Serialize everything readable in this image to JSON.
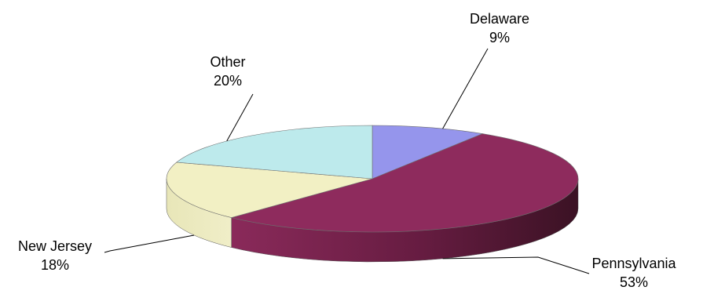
{
  "chart_data": {
    "type": "pie",
    "style": "3d",
    "slices": [
      {
        "label": "Delaware",
        "value": 9,
        "value_text": "9%",
        "color": "#9595EC",
        "side_color": "#6F6FC2"
      },
      {
        "label": "Pennsylvania",
        "value": 53,
        "value_text": "53%",
        "color": "#8E2B5D",
        "side_color": "#6A1E45"
      },
      {
        "label": "New Jersey",
        "value": 18,
        "value_text": "18%",
        "color": "#F2F0C4",
        "side_color": "#E6E4B2"
      },
      {
        "label": "Other",
        "value": 20,
        "value_text": "20%",
        "color": "#BDEAEC",
        "side_color": "#99C9CB"
      }
    ]
  }
}
